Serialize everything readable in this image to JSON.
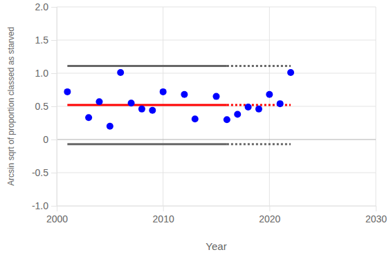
{
  "chart_data": {
    "type": "scatter",
    "x_label": "Year",
    "y_label": "Arcsin sqrt of proportion classed as starved",
    "xlim": [
      2000,
      2030
    ],
    "xticks": [
      2000,
      2010,
      2020,
      2030
    ],
    "ylim": [
      -1,
      2
    ],
    "yticks": [
      {
        "value": -1,
        "label": "-1.0"
      },
      -0.5,
      0,
      0.5,
      {
        "value": 1,
        "label": "1.0"
      },
      1.5,
      {
        "value": 2,
        "label": "2.0"
      }
    ],
    "grid": true,
    "series": [
      {
        "type": "scatter",
        "color": "#0000ff",
        "marker": "circle",
        "x": [
          2001,
          2003,
          2004,
          2005,
          2006,
          2007,
          2008,
          2009,
          2010,
          2012,
          2013,
          2015,
          2016,
          2017,
          2018,
          2019,
          2020,
          2021,
          2022
        ],
        "values": [
          0.72,
          0.33,
          0.57,
          0.2,
          1.01,
          0.55,
          0.46,
          0.44,
          0.72,
          0.68,
          0.31,
          0.65,
          0.3,
          0.38,
          0.49,
          0.46,
          0.68,
          0.54,
          1.01
        ]
      },
      {
        "type": "line",
        "color": "#ff0000",
        "line_style": "solid",
        "x": [
          2001,
          2016
        ],
        "values": [
          0.52,
          0.52
        ]
      },
      {
        "type": "line",
        "color": "#ff0000",
        "line_style": "dotted",
        "x": [
          2016,
          2022
        ],
        "values": [
          0.52,
          0.52
        ]
      },
      {
        "type": "line",
        "color": "#666666",
        "line_style": "solid",
        "x": [
          2001,
          2016
        ],
        "values": [
          1.11,
          1.11
        ]
      },
      {
        "type": "line",
        "color": "#666666",
        "line_style": "dotted",
        "x": [
          2016,
          2022
        ],
        "values": [
          1.11,
          1.11
        ]
      },
      {
        "type": "line",
        "color": "#666666",
        "line_style": "solid",
        "x": [
          2001,
          2016
        ],
        "values": [
          -0.07,
          -0.07
        ]
      },
      {
        "type": "line",
        "color": "#666666",
        "line_style": "dotted",
        "x": [
          2016,
          2022
        ],
        "values": [
          -0.07,
          -0.07
        ]
      }
    ]
  }
}
